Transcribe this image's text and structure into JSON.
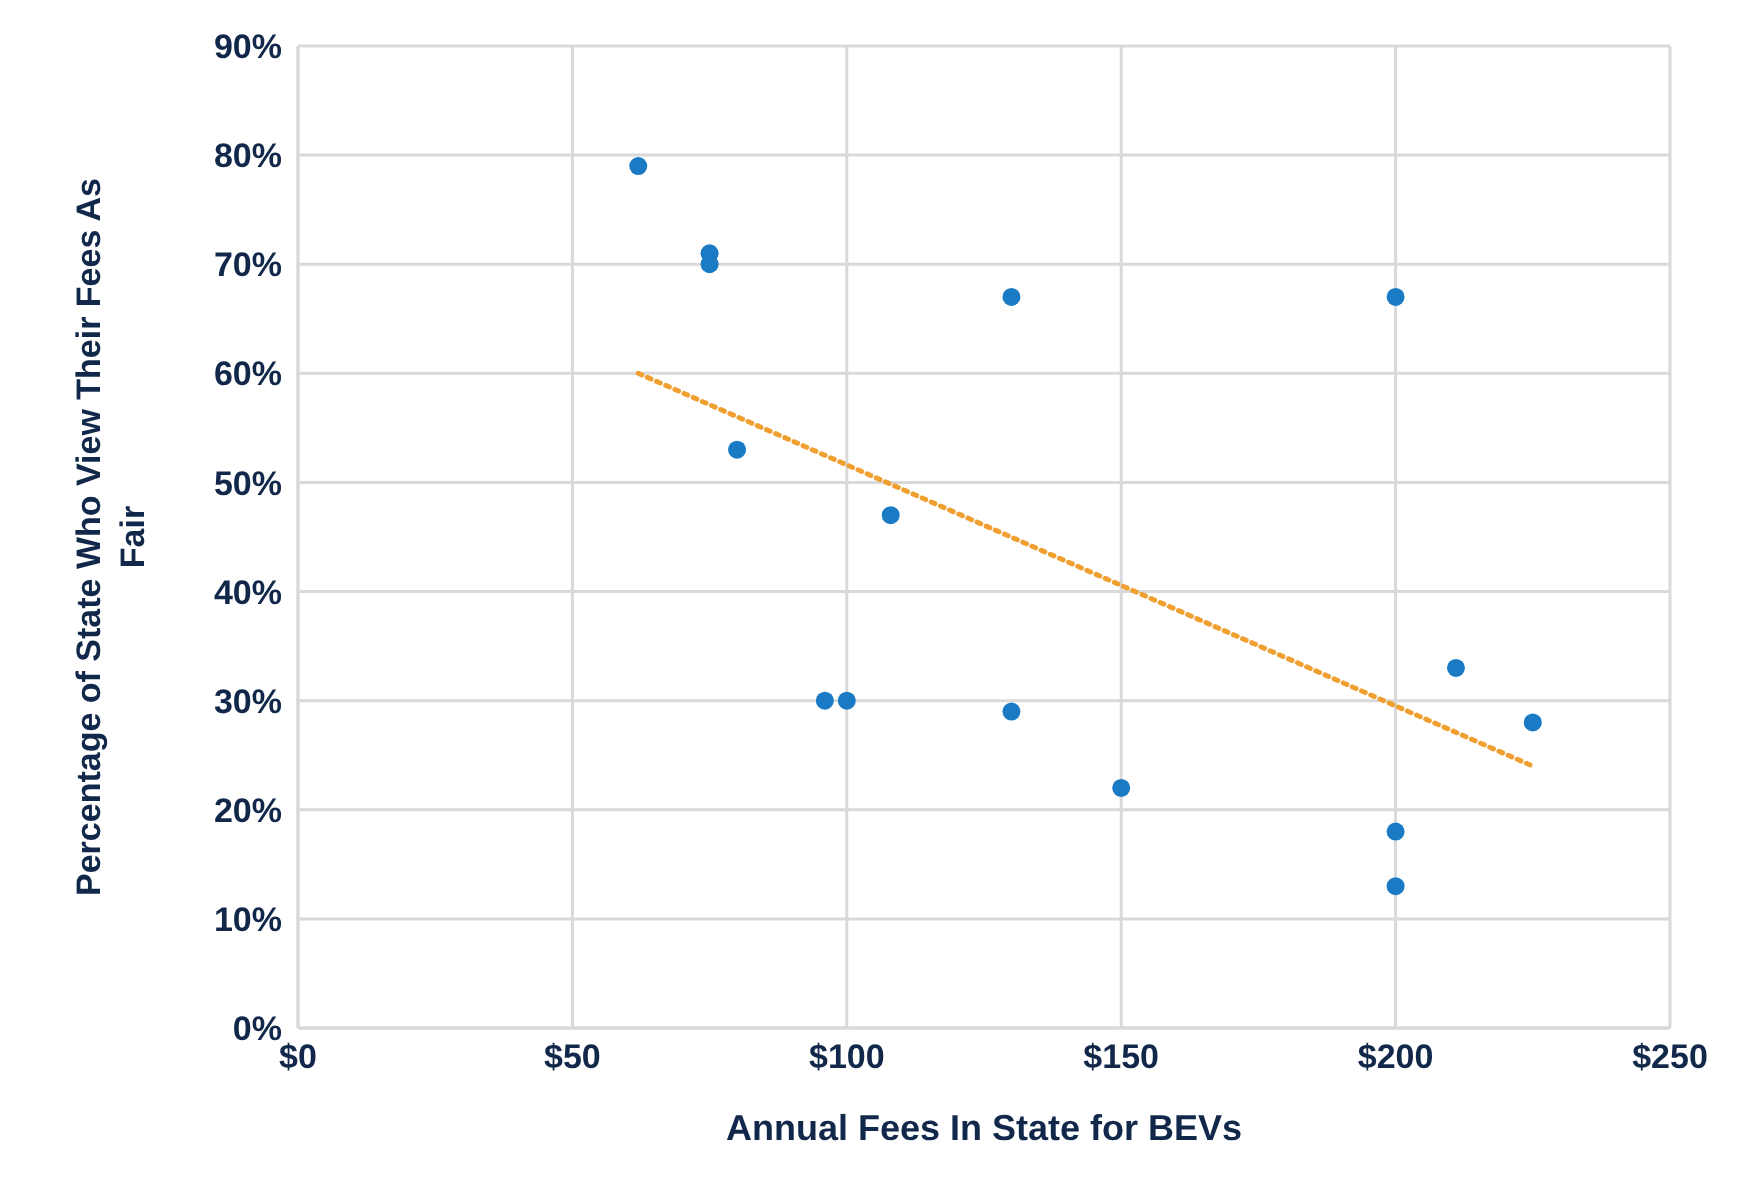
{
  "chart_data": {
    "type": "scatter",
    "xlabel": "Annual Fees In State for BEVs",
    "ylabel": "Percentage of State Who View Their Fees As Fair",
    "series": [
      {
        "color": "#1a7ac4",
        "marker": "circle",
        "x": [
          62,
          75,
          75,
          80,
          108,
          96,
          100,
          130,
          130,
          200,
          211,
          225,
          150,
          200,
          200
        ],
        "values": [
          79,
          71,
          70,
          53,
          47,
          30,
          30,
          29,
          67,
          67,
          33,
          28,
          22,
          18,
          13
        ]
      },
      {
        "type": "line",
        "color": "#f0a030",
        "line_style": "dotted",
        "marker": "none",
        "x": [
          62,
          225
        ],
        "values": [
          60,
          24
        ]
      }
    ],
    "xlim": [
      0,
      250
    ],
    "xticks": [
      {
        "value": 0,
        "label": "$0"
      },
      {
        "value": 50,
        "label": "$50"
      },
      {
        "value": 100,
        "label": "$100"
      },
      {
        "value": 150,
        "label": "$150"
      },
      {
        "value": 200,
        "label": "$200"
      },
      {
        "value": 250,
        "label": "$250"
      }
    ],
    "ylim": [
      0,
      90
    ],
    "yticks": [
      {
        "value": 0,
        "label": "0%"
      },
      {
        "value": 10,
        "label": "10%"
      },
      {
        "value": 20,
        "label": "20%"
      },
      {
        "value": 30,
        "label": "30%"
      },
      {
        "value": 40,
        "label": "40%"
      },
      {
        "value": 50,
        "label": "50%"
      },
      {
        "value": 60,
        "label": "60%"
      },
      {
        "value": 70,
        "label": "70%"
      },
      {
        "value": 80,
        "label": "80%"
      },
      {
        "value": 90,
        "label": "90%"
      }
    ],
    "grid": true
  }
}
